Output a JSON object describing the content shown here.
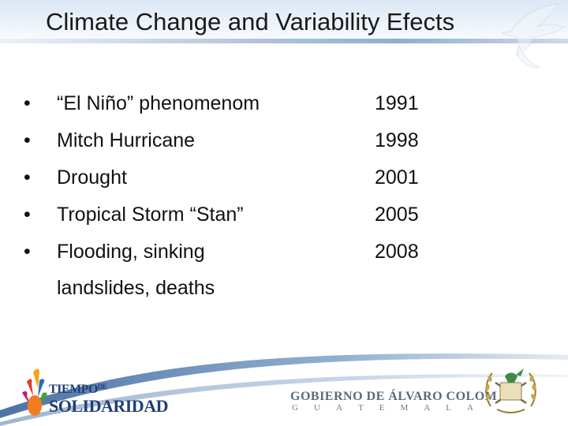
{
  "slide": {
    "title": "Climate Change and Variability Efects",
    "bullet_glyph": "•",
    "events": [
      {
        "event": "“El Niño” phenomenom",
        "year": "1991"
      },
      {
        "event": "Mitch Hurricane",
        "year": "1998"
      },
      {
        "event": "Drought",
        "year": "2001"
      },
      {
        "event": "Tropical Storm “Stan”",
        "year": "2005"
      },
      {
        "event": "Flooding, sinking",
        "event_cont": "landslides, deaths",
        "year": "2008"
      }
    ]
  },
  "footer": {
    "left_logo": {
      "line1": "TIEMPO",
      "line1_small": "DE",
      "line2": "SOLIDARIDAD"
    },
    "government": {
      "name": "GOBIERNO DE ÁLVARO COLOM",
      "country_letters": [
        "G",
        "U",
        "A",
        "T",
        "E",
        "M",
        "A",
        "L",
        "A"
      ]
    }
  },
  "icons": [
    "dove-icon",
    "solidaridad-logo",
    "guatemala-coat-of-arms-icon"
  ],
  "colors": {
    "title_text": "#1a1a1a",
    "logo_blue": "#1f3f75",
    "header_blue": "#9fb9d6"
  }
}
